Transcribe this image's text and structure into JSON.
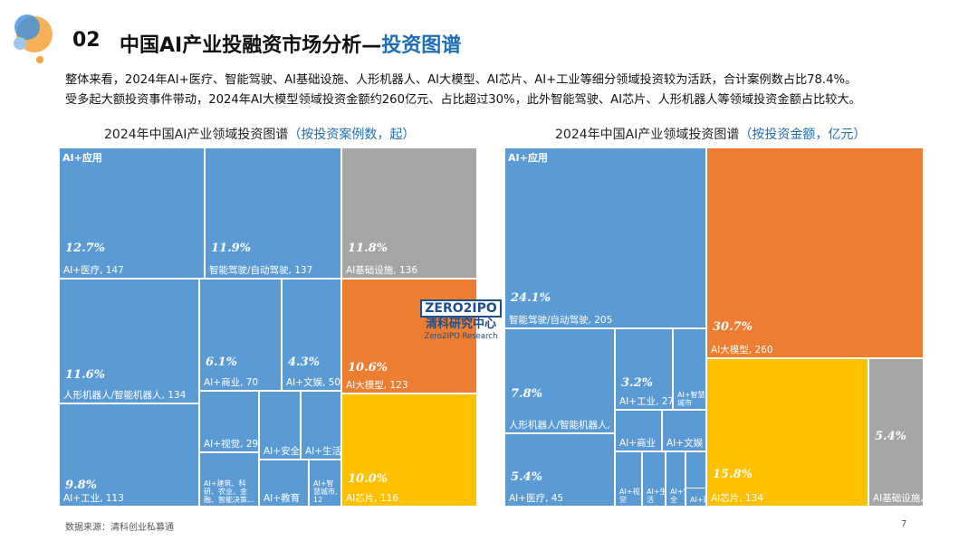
{
  "header": {
    "section_number": "02",
    "title_main": "中国AI产业投融资市场分析—",
    "title_highlight": "投资图谱"
  },
  "summary": {
    "line1": "整体来看，2024年AI+医疗、智能驾驶、AI基础设施、人形机器人、AI大模型、AI芯片、AI+工业等细分领域投资较为活跃，合计案例数占比78.4%。",
    "line2": "受多起大额投资事件带动，2024年AI大模型领域投资金额约260亿元、占比超过30%，此外智能驾驶、AI芯片、人形机器人等领域投资金额占比较大。"
  },
  "logo": {
    "box": "ZERO2IPO",
    "cn": "清科研究中心",
    "en": "Zero2IPO Research"
  },
  "footer": {
    "source": "数据来源：清科创业私募通",
    "page": "7"
  },
  "colors": {
    "blue": "#5b9bd5",
    "gray": "#a5a5a5",
    "orange": "#ed7d31",
    "yellow": "#ffc000",
    "accent": "#1f6fb5"
  },
  "chart_data": [
    {
      "type": "treemap",
      "title": "2024年中国AI产业领域投资图谱",
      "subtitle": "（按投资案例数，起）",
      "corner_label": "AI+应用",
      "cells": [
        {
          "group": "AI+应用",
          "pct": "12.7%",
          "label": "AI+医疗, 147",
          "value": 147
        },
        {
          "group": "AI+应用",
          "pct": "11.9%",
          "label": "智能驾驶/自动驾驶, 137",
          "value": 137
        },
        {
          "group": "AI基础设施",
          "pct": "11.8%",
          "label": "AI基础设施, 136",
          "value": 136
        },
        {
          "group": "AI+应用",
          "pct": "11.6%",
          "label": "人形机器人/智能机器人, 134",
          "value": 134
        },
        {
          "group": "AI+应用",
          "pct": "6.1%",
          "label": "AI+商业, 70",
          "value": 70
        },
        {
          "group": "AI+应用",
          "pct": "4.3%",
          "label": "AI+文娱, 50",
          "value": 50
        },
        {
          "group": "AI大模型",
          "pct": "10.6%",
          "label": "AI大模型, 123",
          "value": 123
        },
        {
          "group": "AI+应用",
          "pct": "9.8%",
          "label": "AI+工业, 113",
          "value": 113
        },
        {
          "group": "AI+应用",
          "pct": "",
          "label": "AI+视觉, 29",
          "value": 29
        },
        {
          "group": "AI+应用",
          "pct": "",
          "label": "AI+安全",
          "value": null
        },
        {
          "group": "AI+应用",
          "pct": "",
          "label": "AI+生活",
          "value": null
        },
        {
          "group": "AI+应用",
          "pct": "",
          "label": "AI+建筑、科研、农业、金融、智能决策...",
          "value": null
        },
        {
          "group": "AI+应用",
          "pct": "",
          "label": "AI+教育",
          "value": null
        },
        {
          "group": "AI+应用",
          "pct": "",
          "label": "AI+智慧城市, 12",
          "value": 12
        },
        {
          "group": "AI芯片",
          "pct": "10.0%",
          "label": "AI芯片, 116",
          "value": 116
        }
      ]
    },
    {
      "type": "treemap",
      "title": "2024年中国AI产业领域投资图谱",
      "subtitle": "（按投资金额，亿元）",
      "corner_label": "AI+应用",
      "cells": [
        {
          "group": "AI+应用",
          "pct": "24.1%",
          "label": "智能驾驶/自动驾驶, 205",
          "value": 205
        },
        {
          "group": "AI大模型",
          "pct": "30.7%",
          "label": "AI大模型, 260",
          "value": 260
        },
        {
          "group": "AI+应用",
          "pct": "7.8%",
          "label": "人形机器人/智能机器人, 66",
          "value": 66
        },
        {
          "group": "AI+应用",
          "pct": "3.2%",
          "label": "AI+工业, 27",
          "value": 27
        },
        {
          "group": "AI+应用",
          "pct": "",
          "label": "AI+智慧城市",
          "value": null
        },
        {
          "group": "AI+应用",
          "pct": "",
          "label": "AI+商业",
          "value": null
        },
        {
          "group": "AI+应用",
          "pct": "",
          "label": "AI+文娱",
          "value": null
        },
        {
          "group": "AI+应用",
          "pct": "5.4%",
          "label": "AI+医疗, 45",
          "value": 45
        },
        {
          "group": "AI+应用",
          "pct": "",
          "label": "AI+视觉",
          "value": null
        },
        {
          "group": "AI+应用",
          "pct": "",
          "label": "AI+生活",
          "value": null
        },
        {
          "group": "AI+应用",
          "pct": "",
          "label": "AI+安全",
          "value": null
        },
        {
          "group": "AI+应用",
          "pct": "",
          "label": "AI+教育...",
          "value": null
        },
        {
          "group": "AI+应用",
          "pct": "",
          "label": "AI+建...",
          "value": null
        },
        {
          "group": "AI芯片",
          "pct": "15.8%",
          "label": "AI芯片, 134",
          "value": 134
        },
        {
          "group": "AI基础设施",
          "pct": "5.4%",
          "label": "AI基础设施, 46",
          "value": 46
        }
      ]
    }
  ]
}
